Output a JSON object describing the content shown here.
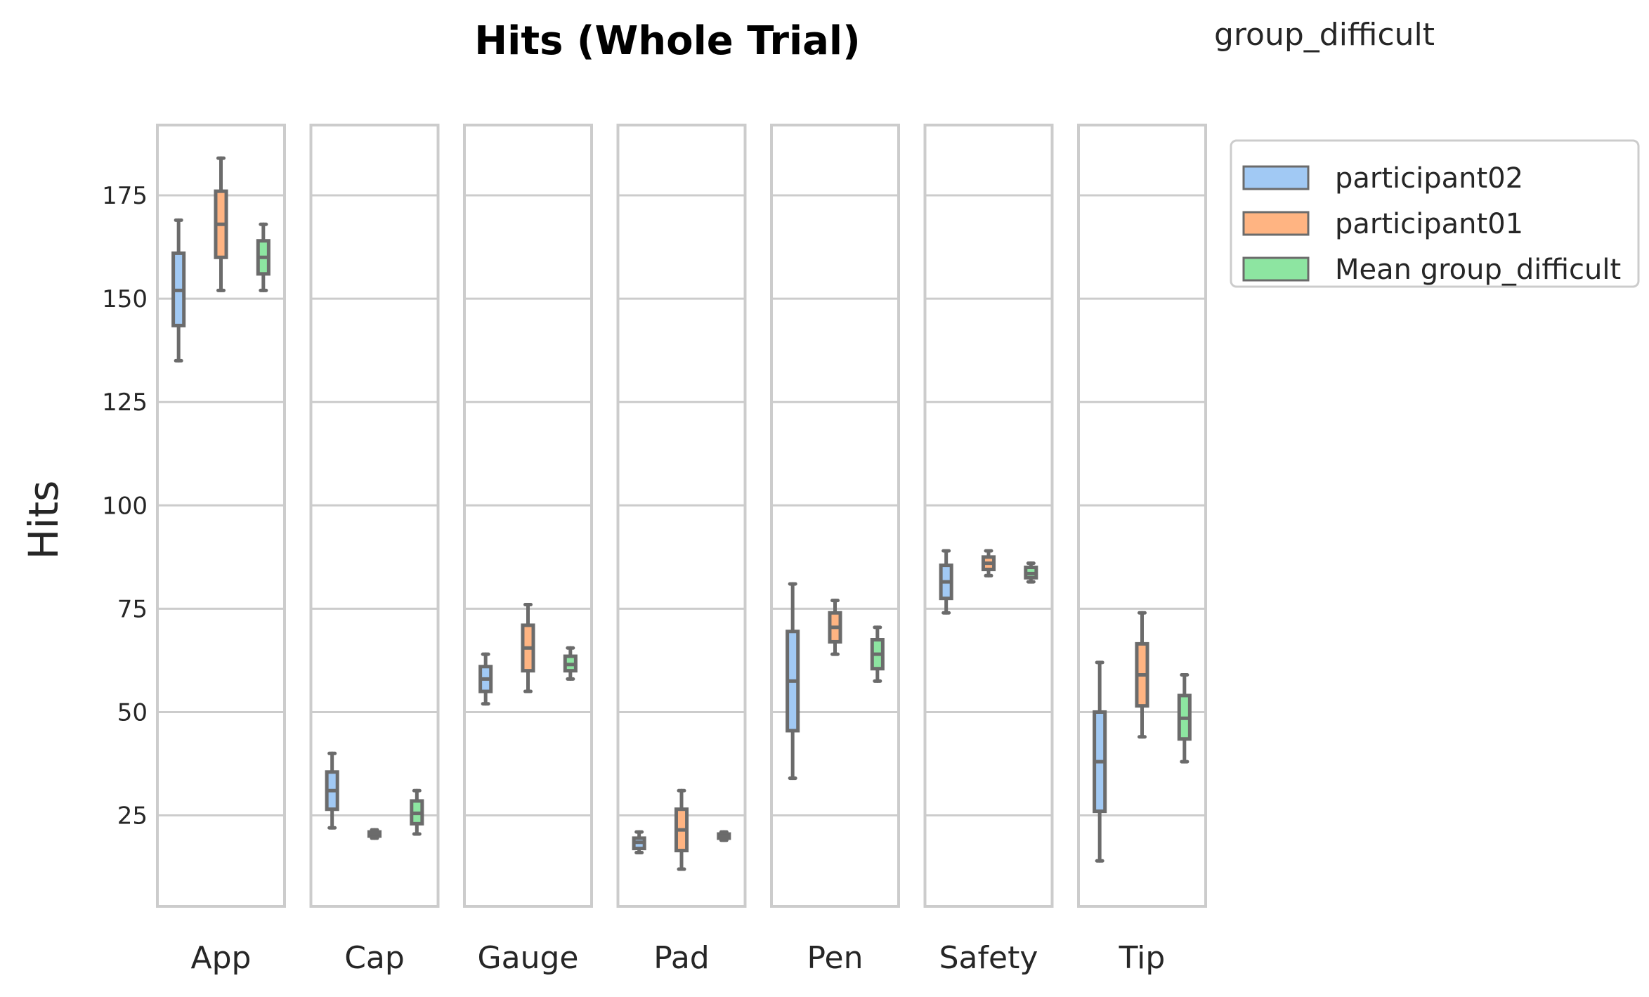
{
  "chart_data": {
    "type": "box",
    "title": "Hits (Whole Trial)",
    "ylabel": "Hits",
    "xlabel": "",
    "ylim": [
      3,
      192
    ],
    "yticks": [
      25,
      50,
      75,
      100,
      125,
      150,
      175
    ],
    "grid": true,
    "legend": {
      "title": "group_difficult",
      "placement": "outside-top-right",
      "entries": [
        "participant02",
        "participant01",
        "Mean group_difficult"
      ]
    },
    "series_colors": [
      "#a1c9f4",
      "#ffb482",
      "#8de5a1"
    ],
    "categories": [
      "App",
      "Cap",
      "Gauge",
      "Pad",
      "Pen",
      "Safety",
      "Tip"
    ],
    "series": [
      {
        "name": "participant02",
        "boxes": [
          {
            "min": 135,
            "q1": 143.5,
            "median": 152,
            "q3": 161,
            "max": 169
          },
          {
            "min": 22,
            "q1": 26.5,
            "median": 31,
            "q3": 35.5,
            "max": 40
          },
          {
            "min": 52,
            "q1": 55,
            "median": 58,
            "q3": 61,
            "max": 64
          },
          {
            "min": 16,
            "q1": 17,
            "median": 18.5,
            "q3": 19.5,
            "max": 21
          },
          {
            "min": 34,
            "q1": 45.5,
            "median": 57.5,
            "q3": 69.5,
            "max": 81
          },
          {
            "min": 74,
            "q1": 77.5,
            "median": 81.5,
            "q3": 85.5,
            "max": 89
          },
          {
            "min": 14,
            "q1": 26,
            "median": 38,
            "q3": 50,
            "max": 62
          }
        ]
      },
      {
        "name": "participant01",
        "boxes": [
          {
            "min": 152,
            "q1": 160,
            "median": 168,
            "q3": 176,
            "max": 184
          },
          {
            "min": 19.5,
            "q1": 20,
            "median": 20.5,
            "q3": 21,
            "max": 21.5
          },
          {
            "min": 55,
            "q1": 60,
            "median": 65.5,
            "q3": 71,
            "max": 76
          },
          {
            "min": 12,
            "q1": 16.5,
            "median": 21.5,
            "q3": 26.5,
            "max": 31
          },
          {
            "min": 64,
            "q1": 67,
            "median": 70.5,
            "q3": 74,
            "max": 77
          },
          {
            "min": 83,
            "q1": 84.5,
            "median": 86,
            "q3": 87.5,
            "max": 89
          },
          {
            "min": 44,
            "q1": 51.5,
            "median": 59,
            "q3": 66.5,
            "max": 74
          }
        ]
      },
      {
        "name": "Mean group_difficult",
        "boxes": [
          {
            "min": 152,
            "q1": 156,
            "median": 160,
            "q3": 164,
            "max": 168
          },
          {
            "min": 20.5,
            "q1": 23,
            "median": 25.5,
            "q3": 28.5,
            "max": 31
          },
          {
            "min": 58,
            "q1": 60,
            "median": 61.5,
            "q3": 63.5,
            "max": 65.5
          },
          {
            "min": 19,
            "q1": 19.5,
            "median": 20,
            "q3": 20.5,
            "max": 21
          },
          {
            "min": 57.5,
            "q1": 60.5,
            "median": 64,
            "q3": 67.5,
            "max": 70.5
          },
          {
            "min": 81.5,
            "q1": 82.5,
            "median": 83.5,
            "q3": 85,
            "max": 86
          },
          {
            "min": 38,
            "q1": 43.5,
            "median": 48.5,
            "q3": 54,
            "max": 59
          }
        ]
      }
    ]
  }
}
